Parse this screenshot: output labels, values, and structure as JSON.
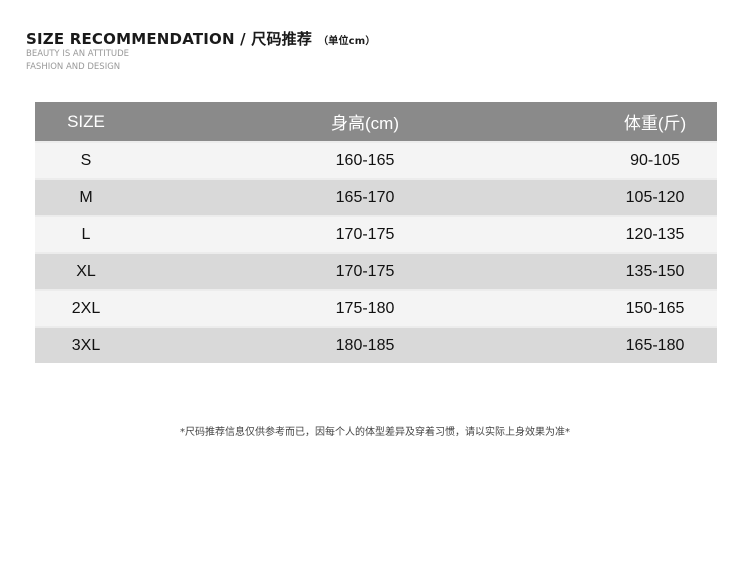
{
  "header": {
    "title": "SIZE RECOMMENDATION / 尺码推荐",
    "unit": "（单位cm）",
    "tagline1": "BEAUTY IS AN ATTITUDE",
    "tagline2": "FASHION AND DESIGN"
  },
  "table": {
    "columns": [
      "SIZE",
      "身高(cm)",
      "体重(斤)"
    ],
    "rows": [
      [
        "S",
        "160-165",
        "90-105"
      ],
      [
        "M",
        "165-170",
        "105-120"
      ],
      [
        "L",
        "170-175",
        "120-135"
      ],
      [
        "XL",
        "170-175",
        "135-150"
      ],
      [
        "2XL",
        "175-180",
        "150-165"
      ],
      [
        "3XL",
        "180-185",
        "165-180"
      ]
    ]
  },
  "note": "*尺码推荐信息仅供参考而已，因每个人的体型差异及穿着习惯，请以实际上身效果为准*",
  "colors": {
    "header_bg": "#8a8a8a",
    "row_light": "#f4f4f4",
    "row_dark": "#d9d9d9"
  }
}
